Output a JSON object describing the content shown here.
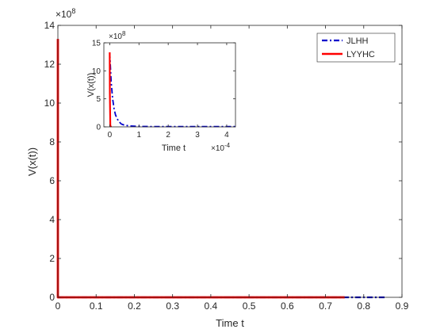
{
  "chart_data": [
    {
      "type": "line",
      "xlabel": "Time t",
      "ylabel": "V(x(t))",
      "xlim": [
        0,
        0.9
      ],
      "ylim": [
        0,
        14
      ],
      "y_exponent_label": "×10",
      "y_exponent_power": "8",
      "xticks": [
        0,
        0.1,
        0.2,
        0.3,
        0.4,
        0.5,
        0.6,
        0.7,
        0.8,
        0.9
      ],
      "xtick_labels": [
        "0",
        "0.1",
        "0.2",
        "0.3",
        "0.4",
        "0.5",
        "0.6",
        "0.7",
        "0.8",
        "0.9"
      ],
      "yticks": [
        0,
        2,
        4,
        6,
        8,
        10,
        12,
        14
      ],
      "ytick_labels": [
        "0",
        "2",
        "4",
        "6",
        "8",
        "10",
        "12",
        "14"
      ],
      "legend_position": "top-right",
      "series": [
        {
          "name": "JLHH",
          "color": "#0000cc",
          "style": "dashdot",
          "x": [
            0,
            0.0001,
            0.86
          ],
          "y": [
            0,
            0,
            0
          ]
        },
        {
          "name": "LYYHC",
          "color": "#ff0000",
          "style": "solid",
          "x": [
            0,
            0,
            0.002,
            0.75
          ],
          "y": [
            13.3,
            0,
            0,
            0
          ]
        }
      ]
    },
    {
      "type": "line",
      "inset": true,
      "xlabel": "Time t",
      "ylabel": "V(x(t))",
      "xlim": [
        -0.2,
        4.3
      ],
      "ylim": [
        0,
        15
      ],
      "x_exponent_label": "×10",
      "x_exponent_power": "-4",
      "y_exponent_label": "×10",
      "y_exponent_power": "8",
      "xticks": [
        0,
        1,
        2,
        3,
        4
      ],
      "xtick_labels": [
        "0",
        "1",
        "2",
        "3",
        "4"
      ],
      "yticks": [
        0,
        5,
        10,
        15
      ],
      "ytick_labels": [
        "0",
        "5",
        "10",
        "15"
      ],
      "series": [
        {
          "name": "JLHH",
          "color": "#0000cc",
          "style": "dashdot",
          "x": [
            0,
            0.05,
            0.1,
            0.15,
            0.2,
            0.3,
            0.4,
            0.5,
            0.7,
            1.0,
            1.5,
            2.0,
            3.0,
            4.3
          ],
          "y": [
            13.3,
            8.0,
            5.0,
            3.2,
            2.1,
            1.0,
            0.5,
            0.3,
            0.15,
            0.08,
            0.05,
            0.05,
            0.05,
            0.05
          ]
        },
        {
          "name": "LYYHC",
          "color": "#ff0000",
          "style": "solid",
          "x": [
            0,
            0.005,
            0.02,
            0.05
          ],
          "y": [
            13.3,
            6.0,
            0.2,
            0
          ]
        }
      ]
    }
  ]
}
